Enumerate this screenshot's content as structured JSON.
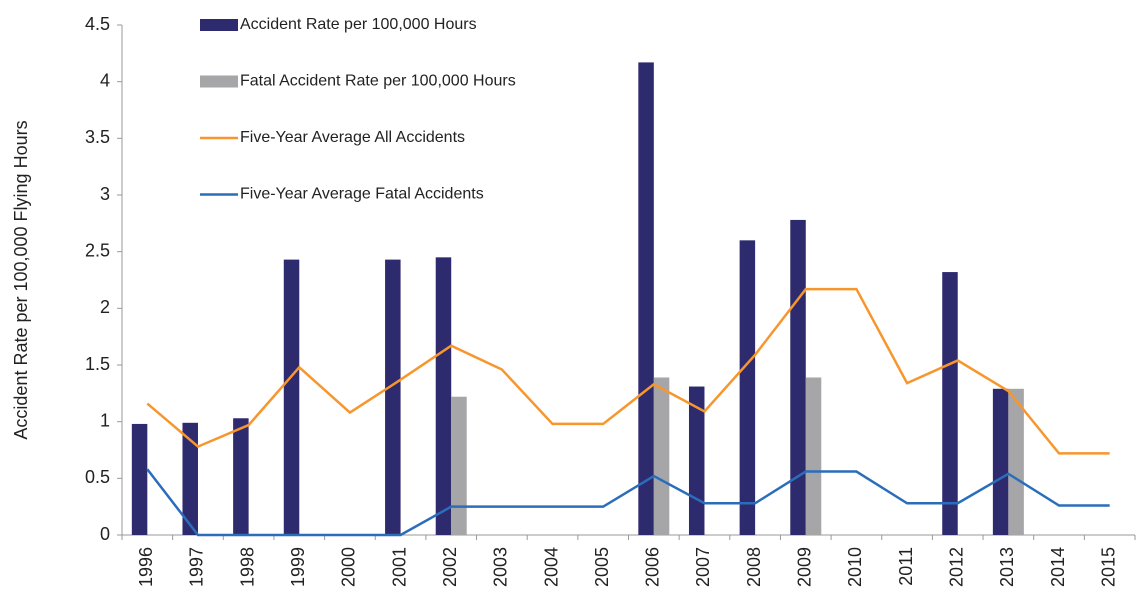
{
  "chart_data": {
    "type": "bar-line",
    "y_label": "Accident Rate per 100,000 Flying Hours",
    "categories": [
      "1996",
      "1997",
      "1998",
      "1999",
      "2000",
      "2001",
      "2002",
      "2003",
      "2004",
      "2005",
      "2006",
      "2007",
      "2008",
      "2009",
      "2010",
      "2011",
      "2012",
      "2013",
      "2014",
      "2015"
    ],
    "series": [
      {
        "name": "Accident Rate per 100,000 Hours",
        "kind": "bar",
        "color": "#2e2a6e",
        "values": [
          0.98,
          0.99,
          1.03,
          2.43,
          null,
          2.43,
          2.45,
          null,
          null,
          null,
          4.17,
          1.31,
          2.6,
          2.78,
          null,
          null,
          2.32,
          1.29,
          null,
          null
        ]
      },
      {
        "name": "Fatal Accident Rate per 100,000 Hours",
        "kind": "bar",
        "color": "#a6a6a8",
        "values": [
          null,
          null,
          null,
          null,
          null,
          null,
          1.22,
          null,
          null,
          null,
          1.39,
          null,
          null,
          1.39,
          null,
          null,
          null,
          1.29,
          null,
          null
        ]
      },
      {
        "name": "Five-Year Average All Accidents",
        "kind": "line",
        "color": "#f7962d",
        "values": [
          1.16,
          0.78,
          0.97,
          1.48,
          1.08,
          1.37,
          1.67,
          1.46,
          0.98,
          0.98,
          1.33,
          1.09,
          1.59,
          2.17,
          2.17,
          1.34,
          1.54,
          1.27,
          0.72,
          0.72
        ]
      },
      {
        "name": "Five-Year Average Fatal Accidents",
        "kind": "line",
        "color": "#2a6ebb",
        "values": [
          0.58,
          0,
          0,
          0,
          0,
          0,
          0.25,
          0.25,
          0.25,
          0.25,
          0.52,
          0.28,
          0.28,
          0.56,
          0.56,
          0.28,
          0.28,
          0.54,
          0.26,
          0.26
        ]
      }
    ],
    "ylim": [
      0,
      4.5
    ],
    "yticks": [
      0,
      0.5,
      1,
      1.5,
      2,
      2.5,
      3,
      3.5,
      4,
      4.5
    ],
    "grid": false,
    "legend": "upper left"
  }
}
